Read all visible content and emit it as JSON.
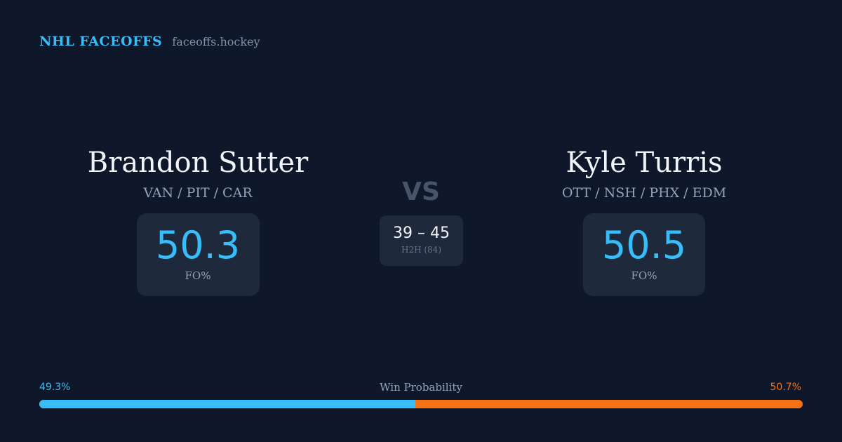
{
  "brand": {
    "name": "NHL FACEOFFS",
    "site": "faceoffs.hockey"
  },
  "player_left": {
    "name": "Brandon Sutter",
    "teams": "VAN / PIT / CAR",
    "stat_value": "50.3",
    "stat_label": "FO%"
  },
  "player_right": {
    "name": "Kyle Turris",
    "teams": "OTT / NSH / PHX / EDM",
    "stat_value": "50.5",
    "stat_label": "FO%"
  },
  "versus": {
    "label": "VS",
    "h2h_score": "39 – 45",
    "h2h_label": "H2H (84)"
  },
  "win_probability": {
    "title": "Win Probability",
    "left_label": "49.3%",
    "right_label": "50.7%",
    "left_fraction": 0.493,
    "left_color": "#38bdf8",
    "right_color": "#f97316"
  },
  "colors": {
    "background": "#0f172a",
    "card": "#1e293b",
    "accent": "#38bdf8",
    "secondary_accent": "#f97316"
  }
}
